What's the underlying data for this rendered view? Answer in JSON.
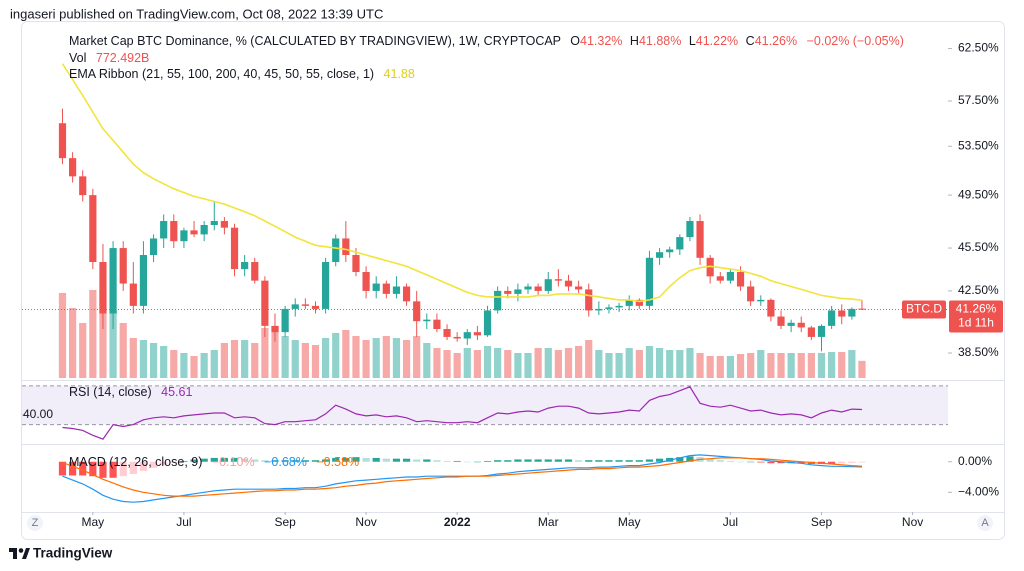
{
  "header": {
    "text": "ingaseri published on TradingView.com, Oct 08, 2022 13:39 UTC"
  },
  "footer": {
    "brand": "TradingView",
    "scale_buttons": [
      "Z",
      "A"
    ]
  },
  "chart_data": [
    {
      "type": "candlestick",
      "title": "Market Cap BTC Dominance, % (CALCULATED BY TRADINGVIEW), 1W, CRYPTOCAP",
      "ohlc_names": [
        "O",
        "H",
        "L",
        "C"
      ],
      "last_labels": [
        "41.32%",
        "41.88%",
        "41.22%",
        "41.26%"
      ],
      "change_label": "−0.02% (−0.05%)",
      "symbol": "BTC.D",
      "price_label": "41.26%",
      "countdown": "1d 11h",
      "up_color": "#26a69a",
      "down_color": "#ef5350",
      "log": true,
      "grid": false,
      "ylim": [
        37,
        65.2
      ],
      "yticks": [
        {
          "value": 62.5,
          "label": "62.50%"
        },
        {
          "value": 57.5,
          "label": "57.50%"
        },
        {
          "value": 53.5,
          "label": "53.50%"
        },
        {
          "value": 49.5,
          "label": "49.50%"
        },
        {
          "value": 45.5,
          "label": "45.50%"
        },
        {
          "value": 42.5,
          "label": "42.50%"
        },
        {
          "value": 38.5,
          "label": "38.50%"
        }
      ],
      "xlim": [
        -4,
        87.5
      ],
      "xticks": [
        {
          "value": 3,
          "label": "May"
        },
        {
          "value": 12,
          "label": "Jul"
        },
        {
          "value": 22,
          "label": "Sep"
        },
        {
          "value": 30,
          "label": "Nov"
        },
        {
          "value": 39,
          "label": "2022"
        },
        {
          "value": 48,
          "label": "Mar"
        },
        {
          "value": 56,
          "label": "May"
        },
        {
          "value": 66,
          "label": "Jul"
        },
        {
          "value": 75,
          "label": "Sep"
        },
        {
          "value": 84,
          "label": "Nov"
        }
      ],
      "open": [
        55.5,
        52.5,
        51.0,
        49.5,
        44.5,
        41.0,
        45.5,
        43.0,
        41.5,
        45.0,
        46.2,
        47.5,
        46.0,
        46.8,
        46.5,
        47.2,
        47.5,
        47.0,
        44.0,
        44.5,
        43.2,
        40.2,
        39.8,
        41.3,
        41.6,
        41.5,
        41.3,
        44.5,
        46.2,
        45.0,
        43.8,
        42.5,
        43.0,
        42.3,
        42.8,
        41.8,
        40.5,
        40.6,
        40.0,
        39.5,
        39.4,
        39.8,
        39.6,
        41.2,
        42.5,
        42.3,
        42.6,
        42.8,
        42.5,
        43.3,
        43.2,
        42.8,
        42.6,
        41.2,
        41.3,
        41.4,
        41.5,
        41.9,
        41.5,
        44.8,
        45.2,
        45.4,
        46.3,
        47.5,
        44.8,
        43.5,
        43.2,
        43.8,
        42.8,
        41.8,
        41.9,
        40.8,
        40.2,
        40.4,
        40.1,
        39.5,
        40.2,
        41.2,
        40.8,
        41.32
      ],
      "high": [
        56.8,
        53.0,
        51.5,
        50.0,
        45.8,
        46.0,
        46.0,
        44.5,
        46.0,
        46.5,
        48.0,
        48.0,
        47.0,
        47.5,
        47.5,
        49.0,
        47.8,
        47.3,
        45.0,
        44.8,
        43.5,
        41.0,
        41.5,
        42.0,
        42.0,
        41.8,
        44.8,
        46.5,
        47.5,
        45.5,
        44.2,
        43.5,
        43.2,
        43.5,
        43.0,
        42.5,
        41.0,
        41.0,
        40.3,
        39.8,
        40.0,
        40.2,
        41.5,
        42.8,
        42.8,
        43.0,
        43.0,
        43.0,
        43.8,
        44.0,
        43.6,
        43.2,
        43.0,
        41.8,
        41.6,
        41.7,
        42.2,
        42.0,
        45.3,
        45.5,
        45.6,
        46.5,
        47.8,
        48.0,
        45.0,
        43.8,
        44.0,
        44.2,
        43.2,
        42.2,
        42.0,
        41.2,
        40.6,
        40.8,
        40.2,
        40.3,
        41.5,
        41.6,
        41.4,
        41.88
      ],
      "low": [
        52.0,
        50.5,
        49.0,
        44.0,
        40.0,
        40.0,
        42.5,
        41.0,
        41.0,
        44.5,
        45.5,
        45.5,
        45.5,
        46.3,
        46.0,
        46.8,
        46.5,
        43.5,
        43.5,
        43.0,
        39.5,
        39.2,
        39.5,
        40.8,
        41.3,
        41.0,
        41.0,
        44.2,
        44.5,
        43.5,
        42.0,
        42.0,
        42.0,
        42.0,
        41.5,
        39.5,
        40.0,
        39.8,
        39.3,
        39.2,
        39.0,
        39.3,
        39.5,
        41.0,
        42.0,
        41.8,
        42.3,
        42.2,
        42.3,
        42.8,
        42.5,
        42.3,
        40.8,
        40.9,
        41.0,
        41.1,
        41.2,
        41.3,
        41.3,
        44.3,
        44.8,
        45.0,
        46.0,
        44.3,
        43.0,
        43.0,
        43.0,
        42.5,
        41.5,
        41.5,
        40.5,
        40.0,
        39.8,
        39.8,
        39.3,
        38.6,
        40.0,
        40.3,
        40.6,
        41.22
      ],
      "close": [
        52.5,
        51.0,
        49.5,
        44.5,
        41.0,
        45.5,
        43.0,
        41.5,
        45.0,
        46.2,
        47.5,
        46.0,
        46.8,
        46.5,
        47.2,
        47.5,
        47.0,
        44.0,
        44.5,
        43.2,
        40.2,
        39.8,
        41.3,
        41.6,
        41.5,
        41.3,
        44.5,
        46.2,
        45.0,
        43.8,
        42.5,
        43.0,
        42.3,
        42.8,
        41.8,
        40.5,
        40.6,
        40.0,
        39.5,
        39.4,
        39.8,
        39.6,
        41.2,
        42.5,
        42.3,
        42.6,
        42.8,
        42.5,
        43.3,
        43.2,
        42.8,
        42.6,
        41.2,
        41.3,
        41.4,
        41.5,
        41.9,
        41.5,
        44.8,
        45.2,
        45.4,
        46.3,
        47.5,
        44.8,
        43.5,
        43.2,
        43.8,
        42.8,
        41.8,
        41.9,
        40.8,
        40.2,
        40.4,
        40.1,
        39.5,
        40.2,
        41.2,
        40.8,
        41.3,
        41.26
      ],
      "volume": {
        "name": "Vol",
        "value_label": "772.492B",
        "values": [
          3825,
          3150,
          2475,
          3960,
          3960,
          3060,
          2475,
          1800,
          1710,
          1575,
          1440,
          1260,
          1125,
          990,
          1125,
          1260,
          1575,
          1710,
          1710,
          1575,
          2250,
          2340,
          1890,
          1710,
          1575,
          1485,
          1800,
          2025,
          2160,
          1890,
          1710,
          1800,
          1890,
          1800,
          1710,
          1890,
          1575,
          1350,
          1260,
          1125,
          1350,
          1260,
          1440,
          1350,
          1260,
          1125,
          1125,
          1350,
          1350,
          1260,
          1350,
          1440,
          1710,
          1260,
          1125,
          1125,
          1350,
          1260,
          1440,
          1350,
          1260,
          1260,
          1350,
          1125,
          990,
          990,
          990,
          1080,
          1125,
          1260,
          1125,
          1125,
          1125,
          1125,
          1125,
          1125,
          1170,
          1170,
          1260,
          772.492
        ]
      },
      "ema": {
        "name": "EMA Ribbon (21, 55, 100, 200, 40, 45, 50, 55, close, 1)",
        "color": "#f2e43a",
        "value_label": "41.88",
        "values": [
          61.0,
          59.5,
          58.0,
          56.5,
          55.0,
          54.0,
          53.0,
          52.0,
          51.3,
          50.8,
          50.4,
          50.0,
          49.7,
          49.4,
          49.2,
          49.0,
          48.8,
          48.5,
          48.2,
          47.9,
          47.5,
          47.1,
          46.7,
          46.3,
          46.0,
          45.7,
          45.6,
          45.5,
          45.4,
          45.2,
          45.0,
          44.8,
          44.6,
          44.4,
          44.2,
          43.9,
          43.6,
          43.3,
          43.0,
          42.7,
          42.4,
          42.2,
          42.1,
          42.1,
          42.1,
          42.1,
          42.1,
          42.2,
          42.2,
          42.3,
          42.3,
          42.3,
          42.2,
          42.1,
          42.0,
          41.9,
          41.9,
          41.8,
          41.9,
          42.1,
          42.8,
          43.4,
          43.9,
          44.1,
          44.2,
          44.1,
          44.0,
          43.9,
          43.7,
          43.5,
          43.2,
          43.0,
          42.8,
          42.6,
          42.4,
          42.2,
          42.1,
          42.0,
          41.95,
          41.88
        ]
      }
    },
    {
      "type": "line",
      "title": "RSI (14, close)",
      "color": "#9c27b0",
      "value_label": "45.61",
      "band": [
        30,
        70
      ],
      "ylim": [
        11,
        75
      ],
      "yticks": [
        {
          "value": 40,
          "label": "40.00"
        }
      ],
      "values": [
        27,
        26,
        24,
        19,
        15,
        30,
        28,
        30,
        35,
        37,
        38,
        37,
        39,
        40,
        41,
        42,
        42,
        37,
        38,
        37,
        31,
        30,
        33,
        33,
        34,
        35,
        41,
        50,
        46,
        41,
        39,
        40,
        38,
        39,
        37,
        33,
        34,
        33,
        32,
        32,
        33,
        32,
        37,
        42,
        41,
        43,
        44,
        43,
        47,
        49,
        49,
        47,
        42,
        41,
        42,
        43,
        45,
        44,
        55,
        59,
        61,
        65,
        69,
        52,
        49,
        48,
        50,
        47,
        44,
        45,
        42,
        40,
        41,
        40,
        37,
        42,
        45,
        43,
        46,
        45.61
      ]
    },
    {
      "type": "macd",
      "title": "MACD (12, 26, close, 9)",
      "ylim": [
        -6.45,
        2.06
      ],
      "yticks": [
        {
          "value": 0,
          "label": "0.00%"
        },
        {
          "value": -4,
          "label": "−4.00%"
        }
      ],
      "histogram": {
        "colors": [
          "#26a69a",
          "#b2dfdb",
          "#ff5252",
          "#ffcdd2"
        ],
        "value_label": "−0.10%",
        "values": [
          -1.8,
          -1.8,
          -1.8,
          -1.9,
          -2.1,
          -2.1,
          -1.9,
          -1.6,
          -1.2,
          -0.8,
          -0.4,
          -0.1,
          0.1,
          0.3,
          0.4,
          0.5,
          0.5,
          0.5,
          0.4,
          0.3,
          0.2,
          0.2,
          0.2,
          0.2,
          0.2,
          0.2,
          0.3,
          0.5,
          0.5,
          0.6,
          0.5,
          0.5,
          0.4,
          0.4,
          0.4,
          0.3,
          0.3,
          0.2,
          0.1,
          0.1,
          0,
          0,
          0.1,
          0.2,
          0.2,
          0.3,
          0.3,
          0.3,
          0.3,
          0.3,
          0.3,
          0.2,
          0.2,
          0.2,
          0.2,
          0.2,
          0.2,
          0.2,
          0.3,
          0.4,
          0.5,
          0.6,
          0.7,
          0.6,
          0.4,
          0.2,
          0.1,
          0,
          0,
          -0.1,
          -0.2,
          -0.2,
          -0.2,
          -0.2,
          -0.3,
          -0.3,
          -0.3,
          -0.2,
          -0.15,
          -0.1
        ]
      },
      "macd": {
        "color": "#2196f3",
        "value_label": "−0.68%",
        "values": [
          -1.9,
          -2.4,
          -2.9,
          -3.6,
          -4.4,
          -4.9,
          -5.2,
          -5.3,
          -5.2,
          -5.0,
          -4.8,
          -4.6,
          -4.4,
          -4.2,
          -4.0,
          -3.8,
          -3.7,
          -3.6,
          -3.6,
          -3.6,
          -3.6,
          -3.6,
          -3.5,
          -3.5,
          -3.4,
          -3.4,
          -3.2,
          -2.9,
          -2.7,
          -2.5,
          -2.4,
          -2.3,
          -2.2,
          -2.1,
          -2.0,
          -2.0,
          -1.9,
          -1.9,
          -1.9,
          -1.9,
          -1.9,
          -1.9,
          -1.8,
          -1.6,
          -1.5,
          -1.3,
          -1.2,
          -1.1,
          -1.0,
          -0.9,
          -0.8,
          -0.8,
          -0.8,
          -0.7,
          -0.7,
          -0.6,
          -0.5,
          -0.5,
          -0.3,
          -0.1,
          0.2,
          0.5,
          0.8,
          0.9,
          0.8,
          0.7,
          0.6,
          0.5,
          0.4,
          0.3,
          0.1,
          0.0,
          -0.1,
          -0.2,
          -0.4,
          -0.5,
          -0.6,
          -0.6,
          -0.65,
          -0.68
        ]
      },
      "signal": {
        "color": "#ff6d00",
        "value_label": "−0.58%",
        "values": [
          -0.1,
          -0.6,
          -1.1,
          -1.7,
          -2.3,
          -2.8,
          -3.3,
          -3.7,
          -4.0,
          -4.2,
          -4.4,
          -4.5,
          -4.5,
          -4.5,
          -4.4,
          -4.3,
          -4.2,
          -4.1,
          -4.0,
          -3.9,
          -3.8,
          -3.8,
          -3.7,
          -3.7,
          -3.6,
          -3.6,
          -3.5,
          -3.4,
          -3.2,
          -3.1,
          -2.9,
          -2.8,
          -2.6,
          -2.5,
          -2.4,
          -2.3,
          -2.2,
          -2.1,
          -2.0,
          -2.0,
          -1.9,
          -1.9,
          -1.9,
          -1.8,
          -1.7,
          -1.6,
          -1.5,
          -1.4,
          -1.3,
          -1.2,
          -1.1,
          -1.0,
          -1.0,
          -0.9,
          -0.9,
          -0.8,
          -0.7,
          -0.7,
          -0.6,
          -0.5,
          -0.3,
          -0.1,
          0.1,
          0.3,
          0.4,
          0.5,
          0.5,
          0.5,
          0.4,
          0.4,
          0.3,
          0.2,
          0.1,
          0.0,
          -0.1,
          -0.2,
          -0.3,
          -0.4,
          -0.5,
          -0.58
        ]
      }
    }
  ]
}
